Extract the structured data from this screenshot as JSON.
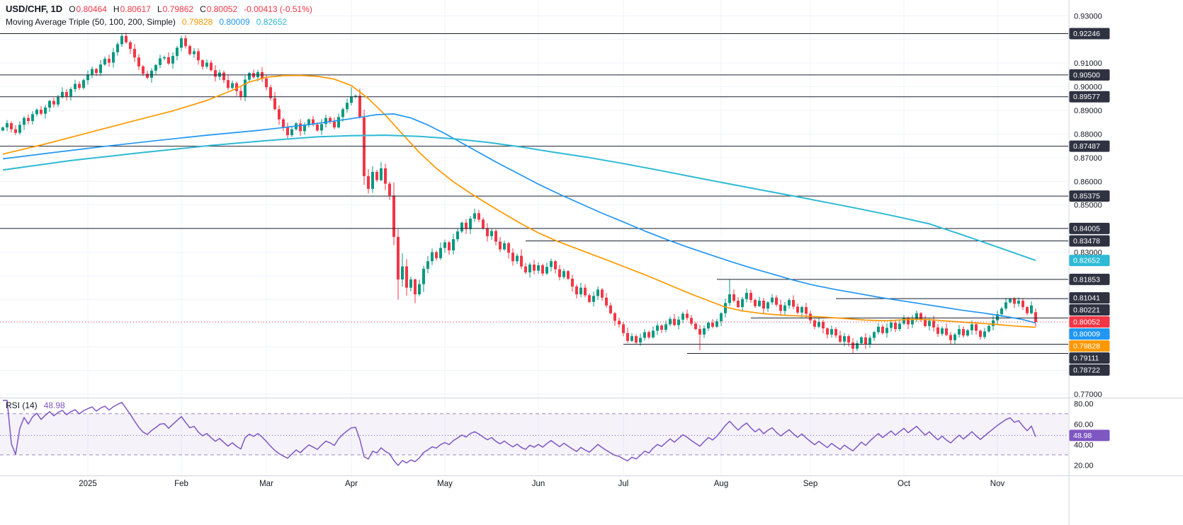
{
  "header": {
    "symbol": "USD/CHF, 1D",
    "ohlc": {
      "o_label": "O",
      "o": "0.80464",
      "h_label": "H",
      "h": "0.80617",
      "l_label": "L",
      "l": "0.79862",
      "c_label": "C",
      "c": "0.80052",
      "change": "-0.00413 (-0.51%)"
    },
    "ma_label": "Moving Average Triple (50, 100, 200, Simple)",
    "ma": {
      "ma50": "0.79828",
      "ma100": "0.80009",
      "ma200": "0.82652"
    }
  },
  "rsi_legend": {
    "label": "RSI (14)",
    "value": "48.98"
  },
  "colors": {
    "up": "#089981",
    "down": "#F23645",
    "ma50": "#FF9800",
    "ma100": "#2196F3",
    "ma200": "#2EBAD4",
    "rsi": "#7E57C2",
    "rsi_band": "#9b8bc4",
    "rsi_fill": "rgba(126,87,194,0.08)",
    "last": "#F23645",
    "level": "#1c2030",
    "badge_dark": "#2f3241",
    "axis_text": "#131722",
    "grid": "#f0f3fa",
    "separator": "#d1d4dc"
  },
  "price_axis": {
    "visible_ticks": [
      [
        "0.93000",
        0.93
      ],
      [
        "0.91000",
        0.91
      ],
      [
        "0.90000",
        0.9
      ],
      [
        "0.89000",
        0.89
      ],
      [
        "0.88000",
        0.88
      ],
      [
        "0.87000",
        0.87
      ],
      [
        "0.86000",
        0.86
      ],
      [
        "0.85000",
        0.85
      ],
      [
        "0.83000",
        0.83
      ],
      [
        "0.77000",
        0.77
      ]
    ],
    "badges": [
      {
        "label": "0.92246",
        "price": 0.92246,
        "bg": "dark"
      },
      {
        "label": "0.90500",
        "price": 0.905,
        "bg": "dark"
      },
      {
        "label": "0.89577",
        "price": 0.89577,
        "bg": "dark"
      },
      {
        "label": "0.87487",
        "price": 0.87487,
        "bg": "dark"
      },
      {
        "label": "0.85375",
        "price": 0.85375,
        "bg": "dark"
      },
      {
        "label": "0.84005",
        "price": 0.84005,
        "bg": "dark"
      },
      {
        "label": "0.83478",
        "price": 0.83478,
        "bg": "dark"
      },
      {
        "label": "0.82652",
        "price": 0.82652,
        "bg": "ma200"
      },
      {
        "label": "0.81853",
        "price": 0.81853,
        "bg": "dark"
      },
      {
        "label": "0.81041",
        "price": 0.81041,
        "bg": "dark"
      },
      {
        "label": "0.80221",
        "price": 0.80221,
        "bg": "dark"
      },
      {
        "label": "0.80052",
        "price": 0.80052,
        "bg": "last",
        "anchor": true
      },
      {
        "label": "0.80009",
        "price": 0.80009,
        "bg": "ma100"
      },
      {
        "label": "0.79828",
        "price": 0.79828,
        "bg": "ma50"
      },
      {
        "label": "0.79111",
        "price": 0.79111,
        "bg": "dark"
      },
      {
        "label": "0.78722",
        "price": 0.78722,
        "bg": "dark"
      }
    ]
  },
  "rsi_axis": {
    "ticks": [
      [
        "80.00",
        80
      ],
      [
        "60.00",
        60
      ],
      [
        "40.00",
        40
      ],
      [
        "20.00",
        20
      ]
    ],
    "badge": {
      "label": "48.98",
      "value": 48.98
    }
  },
  "time_axis": [
    [
      "2025",
      20
    ],
    [
      "Feb",
      42
    ],
    [
      "Mar",
      62
    ],
    [
      "Apr",
      82
    ],
    [
      "May",
      104
    ],
    [
      "Jun",
      126
    ],
    [
      "Jul",
      146
    ],
    [
      "Aug",
      169
    ],
    [
      "Sep",
      190
    ],
    [
      "Oct",
      212
    ],
    [
      "Nov",
      234
    ]
  ],
  "chart_data": {
    "type": "candlestick",
    "symbol": "USD/CHF",
    "timeframe": "1D",
    "title": "USD/CHF daily with SMA 50/100/200 and RSI(14)",
    "price_range": [
      0.7685,
      0.9325
    ],
    "first_open": 0.8815,
    "last_price": 0.80052,
    "closes": [
      0.8828,
      0.8846,
      0.882,
      0.8805,
      0.8839,
      0.8868,
      0.8855,
      0.8884,
      0.8903,
      0.8886,
      0.8912,
      0.894,
      0.8925,
      0.8956,
      0.8978,
      0.896,
      0.899,
      0.9012,
      0.8995,
      0.9028,
      0.9052,
      0.9075,
      0.9058,
      0.9094,
      0.9118,
      0.9102,
      0.9146,
      0.918,
      0.9215,
      0.9188,
      0.916,
      0.9124,
      0.9086,
      0.9055,
      0.9038,
      0.9068,
      0.9092,
      0.912,
      0.9125,
      0.9098,
      0.913,
      0.9165,
      0.9205,
      0.9172,
      0.9138,
      0.915,
      0.9112,
      0.9085,
      0.9102,
      0.907,
      0.9042,
      0.906,
      0.9028,
      0.8995,
      0.9015,
      0.8982,
      0.8958,
      0.903,
      0.9058,
      0.904,
      0.9062,
      0.9035,
      0.8998,
      0.8952,
      0.8905,
      0.8862,
      0.8828,
      0.8795,
      0.882,
      0.8845,
      0.8812,
      0.8838,
      0.8862,
      0.884,
      0.8815,
      0.8842,
      0.8868,
      0.8852,
      0.8828,
      0.8872,
      0.8905,
      0.8932,
      0.8958,
      0.8962,
      0.887,
      0.8622,
      0.8568,
      0.864,
      0.8605,
      0.8655,
      0.859,
      0.854,
      0.8365,
      0.8185,
      0.824,
      0.815,
      0.8185,
      0.8122,
      0.8165,
      0.823,
      0.8262,
      0.83,
      0.8275,
      0.8318,
      0.8342,
      0.8308,
      0.8355,
      0.8388,
      0.8425,
      0.8398,
      0.8442,
      0.8465,
      0.8438,
      0.8402,
      0.8368,
      0.839,
      0.8345,
      0.8312,
      0.8338,
      0.8298,
      0.8262,
      0.8285,
      0.824,
      0.8215,
      0.8248,
      0.8222,
      0.8245,
      0.821,
      0.8238,
      0.8262,
      0.8228,
      0.8195,
      0.822,
      0.8188,
      0.8155,
      0.8122,
      0.815,
      0.8118,
      0.809,
      0.8115,
      0.8142,
      0.8108,
      0.8075,
      0.8042,
      0.801,
      0.7995,
      0.7958,
      0.7925,
      0.7945,
      0.7918,
      0.7938,
      0.7962,
      0.794,
      0.7968,
      0.799,
      0.7972,
      0.7995,
      0.8018,
      0.7992,
      0.8015,
      0.804,
      0.8022,
      0.7998,
      0.7975,
      0.7952,
      0.7978,
      0.8002,
      0.7985,
      0.8008,
      0.8042,
      0.8085,
      0.8122,
      0.8095,
      0.8068,
      0.8102,
      0.8128,
      0.8098,
      0.8072,
      0.8095,
      0.8062,
      0.8088,
      0.8108,
      0.8078,
      0.8052,
      0.8075,
      0.8098,
      0.807,
      0.8045,
      0.8068,
      0.804,
      0.8012,
      0.7985,
      0.8005,
      0.7978,
      0.7952,
      0.7975,
      0.7948,
      0.7922,
      0.7945,
      0.7918,
      0.7892,
      0.7915,
      0.794,
      0.7912,
      0.7938,
      0.7962,
      0.7985,
      0.7958,
      0.798,
      0.8002,
      0.7975,
      0.7998,
      0.8022,
      0.7995,
      0.8018,
      0.8042,
      0.8015,
      0.7988,
      0.801,
      0.7982,
      0.7955,
      0.7978,
      0.795,
      0.7928,
      0.7952,
      0.7975,
      0.7948,
      0.797,
      0.7995,
      0.7968,
      0.7942,
      0.7965,
      0.7988,
      0.8012,
      0.8038,
      0.8062,
      0.8088,
      0.8104,
      0.8082,
      0.8095,
      0.8068,
      0.8042,
      0.8075,
      0.80052
    ],
    "wick_overrides": [
      {
        "i": 28,
        "h": 0.92246
      },
      {
        "i": 42,
        "h": 0.9215
      },
      {
        "i": 82,
        "h": 0.8998
      },
      {
        "i": 85,
        "l": 0.8585
      },
      {
        "i": 92,
        "l": 0.833
      },
      {
        "i": 93,
        "l": 0.81
      },
      {
        "i": 94,
        "h": 0.8295
      },
      {
        "i": 97,
        "l": 0.8085
      },
      {
        "i": 149,
        "l": 0.79111
      },
      {
        "i": 164,
        "l": 0.7885
      },
      {
        "i": 171,
        "h": 0.81853
      },
      {
        "i": 200,
        "l": 0.78722
      },
      {
        "i": 237,
        "h": 0.81041
      },
      {
        "i": 243,
        "o": 0.80464,
        "h": 0.80617,
        "l": 0.79862,
        "c": 0.80052
      }
    ],
    "levels": [
      [
        0.92246,
        0
      ],
      [
        0.905,
        0
      ],
      [
        0.89577,
        0
      ],
      [
        0.87487,
        0
      ],
      [
        0.85375,
        0
      ],
      [
        0.84005,
        0
      ],
      [
        0.83478,
        123
      ],
      [
        0.81853,
        168
      ],
      [
        0.81041,
        196
      ],
      [
        0.80221,
        176
      ],
      [
        0.79111,
        146
      ],
      [
        0.78722,
        161
      ]
    ],
    "sma": [
      {
        "name": "SMA 50",
        "key": "ma50",
        "points": [
          [
            0,
            0.8715
          ],
          [
            10,
            0.8758
          ],
          [
            20,
            0.8805
          ],
          [
            30,
            0.8852
          ],
          [
            40,
            0.8898
          ],
          [
            48,
            0.8942
          ],
          [
            54,
            0.8985
          ],
          [
            58,
            0.902
          ],
          [
            62,
            0.904
          ],
          [
            66,
            0.9047
          ],
          [
            70,
            0.9048
          ],
          [
            74,
            0.9044
          ],
          [
            78,
            0.9032
          ],
          [
            82,
            0.9005
          ],
          [
            86,
            0.895
          ],
          [
            90,
            0.888
          ],
          [
            94,
            0.88
          ],
          [
            98,
            0.8722
          ],
          [
            102,
            0.8655
          ],
          [
            106,
            0.8598
          ],
          [
            110,
            0.855
          ],
          [
            114,
            0.8505
          ],
          [
            118,
            0.8462
          ],
          [
            122,
            0.842
          ],
          [
            126,
            0.8382
          ],
          [
            130,
            0.835
          ],
          [
            134,
            0.8322
          ],
          [
            138,
            0.8295
          ],
          [
            142,
            0.8268
          ],
          [
            146,
            0.824
          ],
          [
            151,
            0.8205
          ],
          [
            156,
            0.8168
          ],
          [
            161,
            0.813
          ],
          [
            166,
            0.8095
          ],
          [
            170,
            0.8068
          ],
          [
            174,
            0.8052
          ],
          [
            178,
            0.8042
          ],
          [
            183,
            0.8034
          ],
          [
            188,
            0.803
          ],
          [
            193,
            0.8026
          ],
          [
            198,
            0.802
          ],
          [
            203,
            0.8013
          ],
          [
            208,
            0.801
          ],
          [
            213,
            0.8016
          ],
          [
            218,
            0.8015
          ],
          [
            223,
            0.8008
          ],
          [
            228,
            0.8002
          ],
          [
            233,
            0.7996
          ],
          [
            238,
            0.7988
          ],
          [
            243,
            0.79828
          ]
        ]
      },
      {
        "name": "SMA 100",
        "key": "ma100",
        "points": [
          [
            0,
            0.8695
          ],
          [
            12,
            0.8722
          ],
          [
            24,
            0.8748
          ],
          [
            36,
            0.8772
          ],
          [
            48,
            0.8795
          ],
          [
            60,
            0.8815
          ],
          [
            72,
            0.884
          ],
          [
            82,
            0.8865
          ],
          [
            88,
            0.8882
          ],
          [
            92,
            0.8885
          ],
          [
            96,
            0.8868
          ],
          [
            100,
            0.8838
          ],
          [
            104,
            0.8802
          ],
          [
            108,
            0.8762
          ],
          [
            112,
            0.8722
          ],
          [
            116,
            0.8682
          ],
          [
            121,
            0.8635
          ],
          [
            126,
            0.8588
          ],
          [
            131,
            0.8545
          ],
          [
            136,
            0.8505
          ],
          [
            141,
            0.8465
          ],
          [
            146,
            0.8428
          ],
          [
            151,
            0.839
          ],
          [
            156,
            0.8355
          ],
          [
            161,
            0.8322
          ],
          [
            166,
            0.8292
          ],
          [
            171,
            0.8262
          ],
          [
            176,
            0.8234
          ],
          [
            181,
            0.8208
          ],
          [
            186,
            0.8182
          ],
          [
            191,
            0.816
          ],
          [
            196,
            0.8142
          ],
          [
            201,
            0.8126
          ],
          [
            206,
            0.811
          ],
          [
            211,
            0.8096
          ],
          [
            216,
            0.8082
          ],
          [
            221,
            0.8068
          ],
          [
            226,
            0.8054
          ],
          [
            231,
            0.8042
          ],
          [
            236,
            0.8028
          ],
          [
            240,
            0.8015
          ],
          [
            243,
            0.80009
          ]
        ]
      },
      {
        "name": "SMA 200",
        "key": "ma200",
        "points": [
          [
            0,
            0.8648
          ],
          [
            16,
            0.8688
          ],
          [
            33,
            0.8722
          ],
          [
            49,
            0.8752
          ],
          [
            62,
            0.8772
          ],
          [
            74,
            0.8788
          ],
          [
            82,
            0.8793
          ],
          [
            90,
            0.8795
          ],
          [
            98,
            0.879
          ],
          [
            106,
            0.878
          ],
          [
            114,
            0.8765
          ],
          [
            122,
            0.8745
          ],
          [
            130,
            0.8722
          ],
          [
            138,
            0.87
          ],
          [
            146,
            0.8675
          ],
          [
            154,
            0.8648
          ],
          [
            162,
            0.862
          ],
          [
            170,
            0.8592
          ],
          [
            178,
            0.8565
          ],
          [
            186,
            0.8538
          ],
          [
            194,
            0.851
          ],
          [
            202,
            0.8482
          ],
          [
            210,
            0.8452
          ],
          [
            218,
            0.842
          ],
          [
            226,
            0.8372
          ],
          [
            234,
            0.8322
          ],
          [
            243,
            0.82652
          ]
        ]
      }
    ],
    "rsi": {
      "period": 14,
      "current": 48.98,
      "upper_band": 70,
      "lower_band": 30,
      "range": [
        85,
        10
      ]
    }
  }
}
